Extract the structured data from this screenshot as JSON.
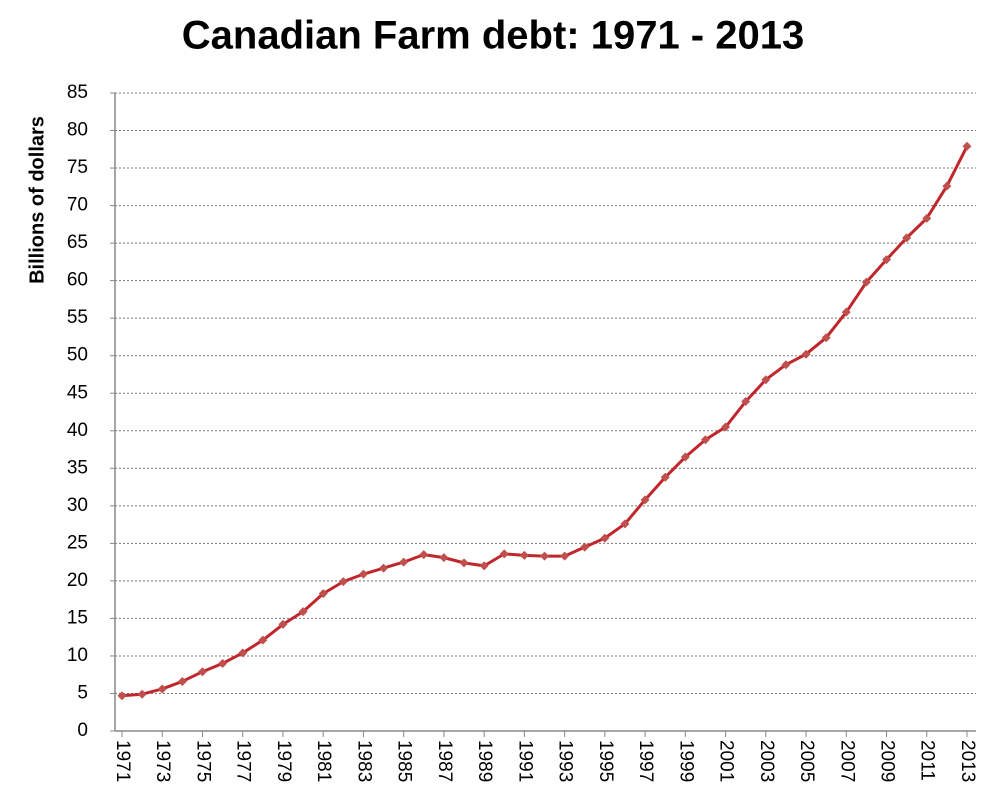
{
  "chart_data": {
    "type": "line",
    "title": "Canadian Farm debt: 1971 - 2013",
    "y_label": "Billions of dollars",
    "x": [
      1971,
      1972,
      1973,
      1974,
      1975,
      1976,
      1977,
      1978,
      1979,
      1980,
      1981,
      1982,
      1983,
      1984,
      1985,
      1986,
      1987,
      1988,
      1989,
      1990,
      1991,
      1992,
      1993,
      1994,
      1995,
      1996,
      1997,
      1998,
      1999,
      2000,
      2001,
      2002,
      2003,
      2004,
      2005,
      2006,
      2007,
      2008,
      2009,
      2010,
      2011,
      2012,
      2013
    ],
    "values": [
      4.7,
      4.9,
      5.6,
      6.6,
      7.9,
      9.0,
      10.4,
      12.1,
      14.2,
      15.9,
      18.3,
      19.9,
      20.9,
      21.7,
      22.5,
      23.5,
      23.1,
      22.4,
      22.0,
      23.6,
      23.4,
      23.3,
      23.3,
      24.5,
      25.7,
      27.6,
      30.8,
      33.8,
      36.5,
      38.8,
      40.5,
      43.9,
      46.8,
      48.8,
      50.2,
      52.4,
      55.8,
      59.8,
      62.8,
      65.7,
      68.3,
      72.6,
      77.9
    ],
    "color": "#c0262b",
    "marker_color": "#c0504d",
    "xlim": [
      1971,
      2013
    ],
    "xticks": [
      1971,
      1973,
      1975,
      1977,
      1979,
      1981,
      1983,
      1985,
      1987,
      1989,
      1991,
      1993,
      1995,
      1997,
      1999,
      2001,
      2003,
      2005,
      2007,
      2009,
      2011,
      2013
    ],
    "ylim": [
      0,
      85
    ],
    "yticks": [
      0,
      5,
      10,
      15,
      20,
      25,
      30,
      35,
      40,
      45,
      50,
      55,
      60,
      65,
      70,
      75,
      80,
      85
    ],
    "grid": true
  }
}
